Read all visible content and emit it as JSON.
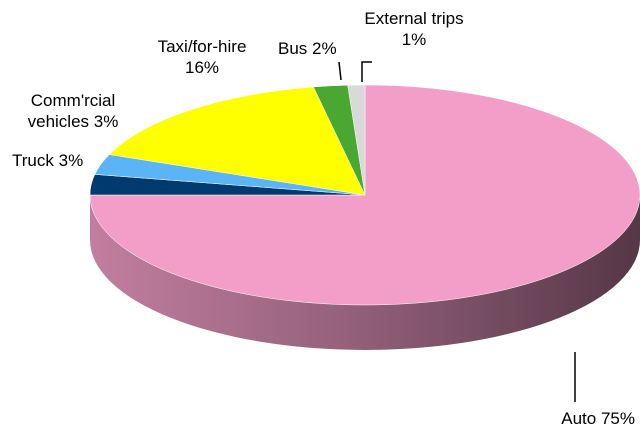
{
  "chart_data": {
    "type": "pie3d",
    "categories": [
      "Auto",
      "Truck",
      "Comm'rcial vehicles",
      "Taxi/for-hire",
      "Bus",
      "External trips"
    ],
    "values": [
      75,
      3,
      3,
      16,
      2,
      1
    ],
    "value_labels": [
      "75%",
      "3%",
      "3%",
      "16%",
      "2%",
      "1%"
    ],
    "colors": [
      "#f29ec8",
      "#003a6e",
      "#5bb4f5",
      "#ffff00",
      "#4aa832",
      "#d9d9d9"
    ]
  }
}
